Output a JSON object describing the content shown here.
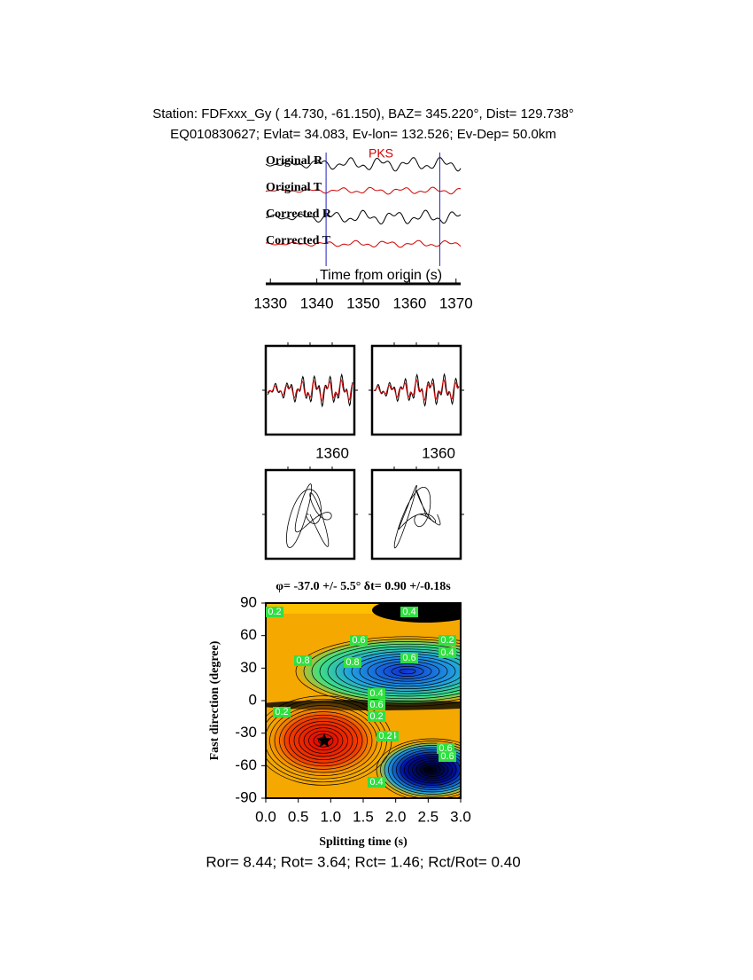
{
  "header": {
    "station": "Station: FDFxxx_Gy (  14.730,  -61.150), BAZ=  345.220°, Dist=  129.738°",
    "event": "EQ010830627; Evlat=  34.083, Ev-lon= 132.526; Ev-Dep= 50.0km"
  },
  "chart_data": [
    {
      "type": "waveform",
      "trace_labels": [
        "Original R",
        "Original T",
        "Corrected R",
        "Corrected T"
      ],
      "trace_colors": [
        "#000000",
        "#d00000",
        "#000000",
        "#d00000"
      ],
      "annotation": "PKS",
      "xlabel": "Time from origin (s)",
      "xlim": [
        1329,
        1371
      ],
      "xticks": [
        1330,
        1340,
        1350,
        1360,
        1370
      ],
      "window": [
        1342,
        1366.5
      ],
      "window_color": "#2020c0"
    },
    {
      "type": "particle",
      "xticks": [
        1360,
        1360
      ]
    },
    {
      "type": "contour",
      "title": "φ= -37.0 +/- 5.5° δt= 0.90 +/-0.18s",
      "xlabel": "Splitting time (s)",
      "ylabel": "Fast direction (degree)",
      "xlim": [
        0,
        3
      ],
      "ylim": [
        -90,
        90
      ],
      "xticks": [
        {
          "value": 0,
          "label": "0.0"
        },
        {
          "value": 0.5,
          "label": "0.5"
        },
        {
          "value": 1,
          "label": "1.0"
        },
        {
          "value": 1.5,
          "label": "1.5"
        },
        {
          "value": 2,
          "label": "2.0"
        },
        {
          "value": 2.5,
          "label": "2.5"
        },
        {
          "value": 3,
          "label": "3.0"
        }
      ],
      "yticks": [
        -90,
        -60,
        -30,
        0,
        30,
        60,
        90
      ],
      "best": {
        "x": 0.9,
        "y": -37
      },
      "contour_labels": [
        "0.2",
        "0.4",
        "0.6",
        "0.8",
        "0.8",
        "0.6",
        "0.2",
        "0.4",
        "0.6",
        "0.4",
        "0.2",
        "0.2",
        "0.4",
        "0.6",
        "0.6",
        "0.2",
        "0.4"
      ]
    }
  ],
  "footer": "Ror= 8.44; Rot= 3.64; Rct= 1.46; Rct/Rot= 0.40"
}
